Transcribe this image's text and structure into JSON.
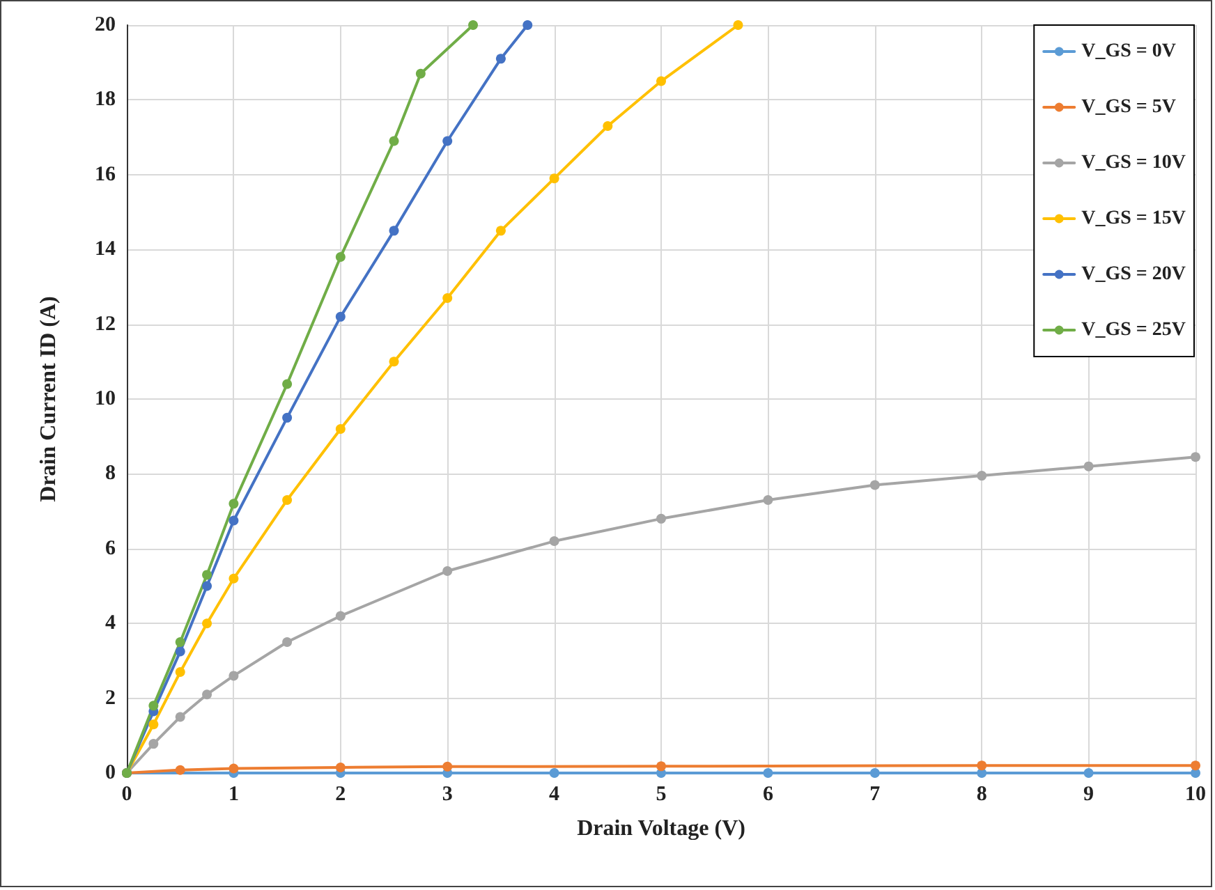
{
  "chart_data": {
    "type": "line",
    "xlabel": "Drain Voltage (V)",
    "ylabel": "Drain Current ID (A)",
    "xlim": [
      0,
      10
    ],
    "xticks": [
      0,
      1,
      2,
      3,
      4,
      5,
      6,
      7,
      8,
      9,
      10
    ],
    "ylim": [
      0,
      20
    ],
    "yticks": [
      0,
      2,
      4,
      6,
      8,
      10,
      12,
      14,
      16,
      18,
      20
    ],
    "grid": true,
    "legend": "top right",
    "marker": "circle",
    "line_style": "solid",
    "series": [
      {
        "name": "V_GS = 0V",
        "color": "#5b9bd5",
        "x": [
          0,
          1,
          2,
          3,
          4,
          5,
          6,
          7,
          8,
          9,
          10
        ],
        "values": [
          0,
          0,
          0,
          0,
          0,
          0,
          0,
          0,
          0,
          0,
          0
        ]
      },
      {
        "name": "V_GS = 5V",
        "color": "#ed7d31",
        "x": [
          0,
          0.5,
          1,
          2,
          3,
          5,
          8,
          10
        ],
        "values": [
          0,
          0.08,
          0.12,
          0.15,
          0.17,
          0.18,
          0.2,
          0.2
        ]
      },
      {
        "name": "V_GS = 10V",
        "color": "#a5a5a5",
        "x": [
          0,
          0.25,
          0.5,
          0.75,
          1,
          1.5,
          2,
          3,
          4,
          5,
          6,
          7,
          8,
          9,
          10
        ],
        "values": [
          0,
          0.78,
          1.5,
          2.1,
          2.6,
          3.5,
          4.2,
          5.4,
          6.2,
          6.8,
          7.3,
          7.7,
          7.95,
          8.2,
          8.45
        ]
      },
      {
        "name": "V_GS = 15V",
        "color": "#ffc000",
        "x": [
          0,
          0.25,
          0.5,
          0.75,
          1,
          1.5,
          2,
          2.5,
          3,
          3.5,
          4,
          4.5,
          5,
          5.72
        ],
        "values": [
          0,
          1.3,
          2.7,
          4.0,
          5.2,
          7.3,
          9.2,
          11.0,
          12.7,
          14.5,
          15.9,
          17.3,
          18.5,
          20
        ]
      },
      {
        "name": "V_GS = 20V",
        "color": "#4472c4",
        "x": [
          0,
          0.25,
          0.5,
          0.75,
          1,
          1.5,
          2,
          2.5,
          3,
          3.5,
          3.75
        ],
        "values": [
          0,
          1.65,
          3.25,
          5.0,
          6.75,
          9.5,
          12.2,
          14.5,
          16.9,
          19.1,
          20
        ]
      },
      {
        "name": "V_GS = 25V",
        "color": "#70ad47",
        "x": [
          0,
          0.25,
          0.5,
          0.75,
          1,
          1.5,
          2,
          2.5,
          2.75,
          3.24
        ],
        "values": [
          0,
          1.8,
          3.5,
          5.3,
          7.2,
          10.4,
          13.8,
          16.9,
          18.7,
          20
        ]
      }
    ]
  }
}
